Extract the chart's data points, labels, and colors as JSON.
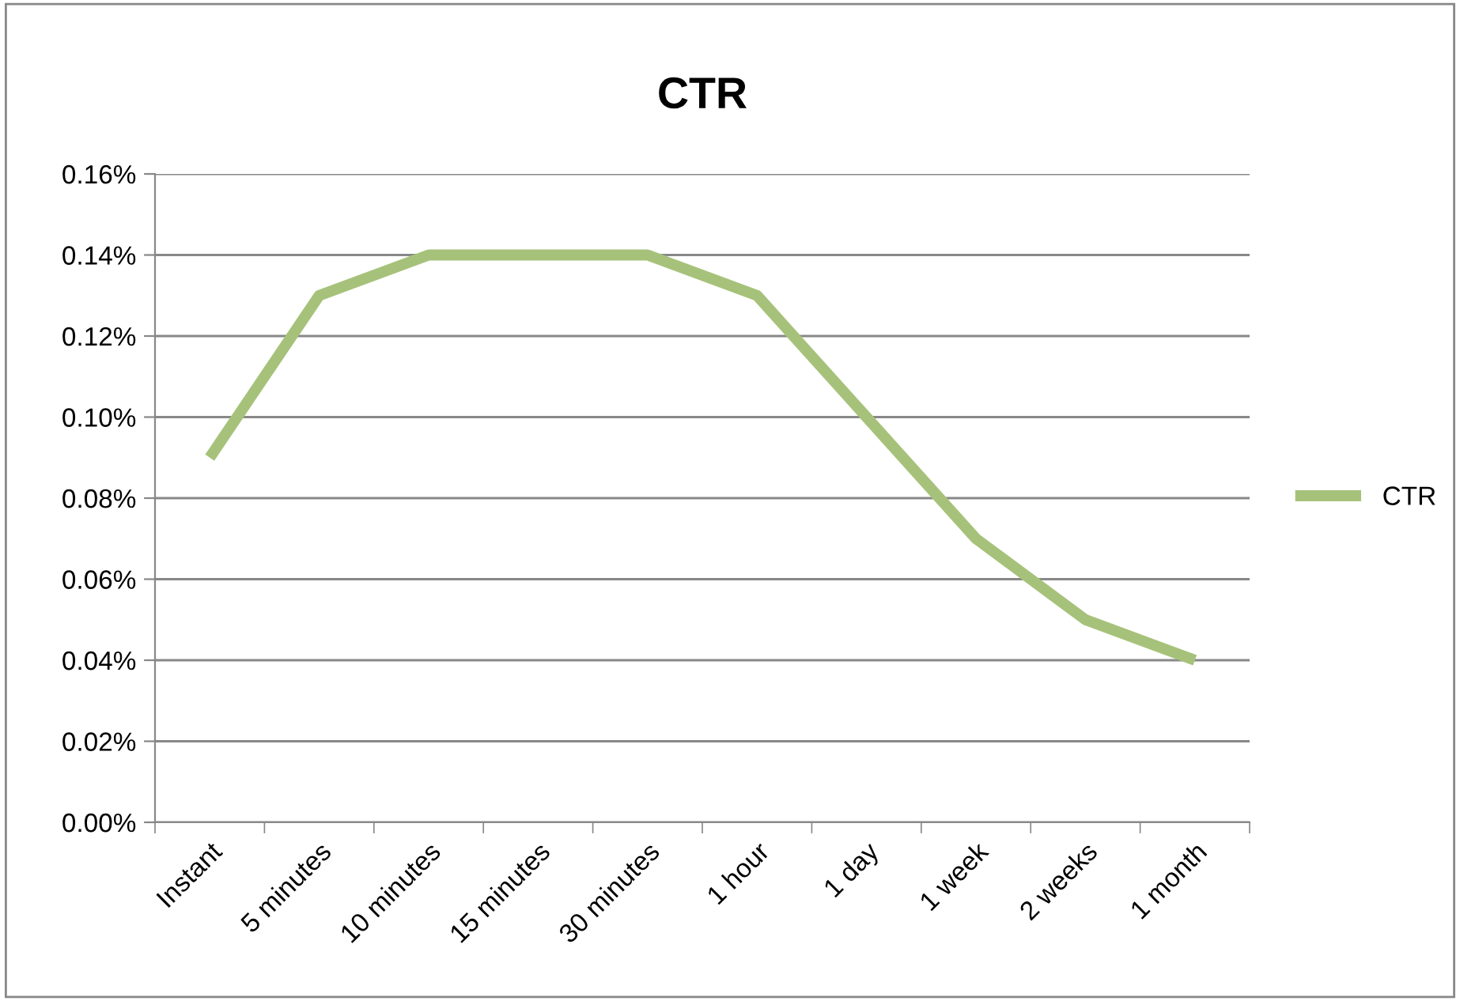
{
  "chart_data": {
    "type": "line",
    "title": "CTR",
    "categories": [
      "Instant",
      "5 minutes",
      "10 minutes",
      "15 minutes",
      "30 minutes",
      "1 hour",
      "1 day",
      "1 week",
      "2 weeks",
      "1 month"
    ],
    "series": [
      {
        "name": "CTR",
        "color": "#a6c27a",
        "values": [
          0.09,
          0.13,
          0.14,
          0.14,
          0.14,
          0.13,
          0.1,
          0.07,
          0.05,
          0.04
        ]
      }
    ],
    "ylim": [
      0,
      0.16
    ],
    "yticks": [
      {
        "value": 0,
        "label": "0.00%"
      },
      {
        "value": 0.02,
        "label": "0.02%"
      },
      {
        "value": 0.04,
        "label": "0.04%"
      },
      {
        "value": 0.06,
        "label": "0.06%"
      },
      {
        "value": 0.08,
        "label": "0.08%"
      },
      {
        "value": 0.1,
        "label": "0.10%"
      },
      {
        "value": 0.12,
        "label": "0.12%"
      },
      {
        "value": 0.14,
        "label": "0.14%"
      },
      {
        "value": 0.16,
        "label": "0.16%"
      }
    ],
    "grid": "y",
    "legend": "right",
    "marker": "none",
    "line_style": "solid"
  }
}
